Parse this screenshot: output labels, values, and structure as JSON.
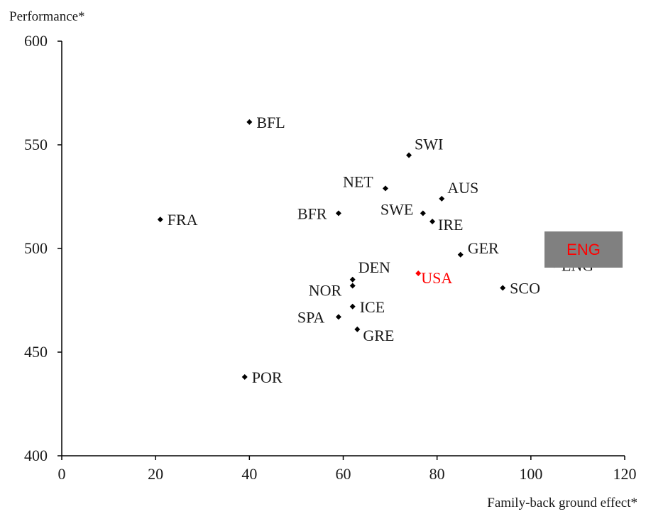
{
  "chart_data": {
    "type": "scatter",
    "ylabel": "Performance*",
    "xlabel": "Family-back ground effect*",
    "xlim": [
      0,
      120
    ],
    "ylim": [
      400,
      600
    ],
    "xticks": [
      0,
      20,
      40,
      60,
      80,
      100,
      120
    ],
    "yticks": [
      400,
      450,
      500,
      550,
      600
    ],
    "grid": false,
    "highlight_color": "#ff0000",
    "point_color": "#000000",
    "points": [
      {
        "label": "BFL",
        "x": 40,
        "y": 561
      },
      {
        "label": "SWI",
        "x": 74,
        "y": 545
      },
      {
        "label": "NET",
        "x": 69,
        "y": 529
      },
      {
        "label": "AUS",
        "x": 81,
        "y": 524
      },
      {
        "label": "FRA",
        "x": 21,
        "y": 514
      },
      {
        "label": "BFR",
        "x": 59,
        "y": 517
      },
      {
        "label": "SWE",
        "x": 77,
        "y": 517
      },
      {
        "label": "IRE",
        "x": 79,
        "y": 513
      },
      {
        "label": "GER",
        "x": 85,
        "y": 497
      },
      {
        "label": "ENG",
        "x": 105,
        "y": 492
      },
      {
        "label": "DEN",
        "x": 62,
        "y": 485
      },
      {
        "label": "NOR",
        "x": 62,
        "y": 482
      },
      {
        "label": "USA",
        "x": 76,
        "y": 488,
        "highlight": true
      },
      {
        "label": "SCO",
        "x": 94,
        "y": 481
      },
      {
        "label": "ICE",
        "x": 62,
        "y": 472
      },
      {
        "label": "SPA",
        "x": 59,
        "y": 467
      },
      {
        "label": "GRE",
        "x": 63,
        "y": 461
      },
      {
        "label": "POR",
        "x": 39,
        "y": 438
      }
    ]
  },
  "overlay": {
    "label": "ENG",
    "background": "#808080",
    "text_color": "#ff0000"
  }
}
